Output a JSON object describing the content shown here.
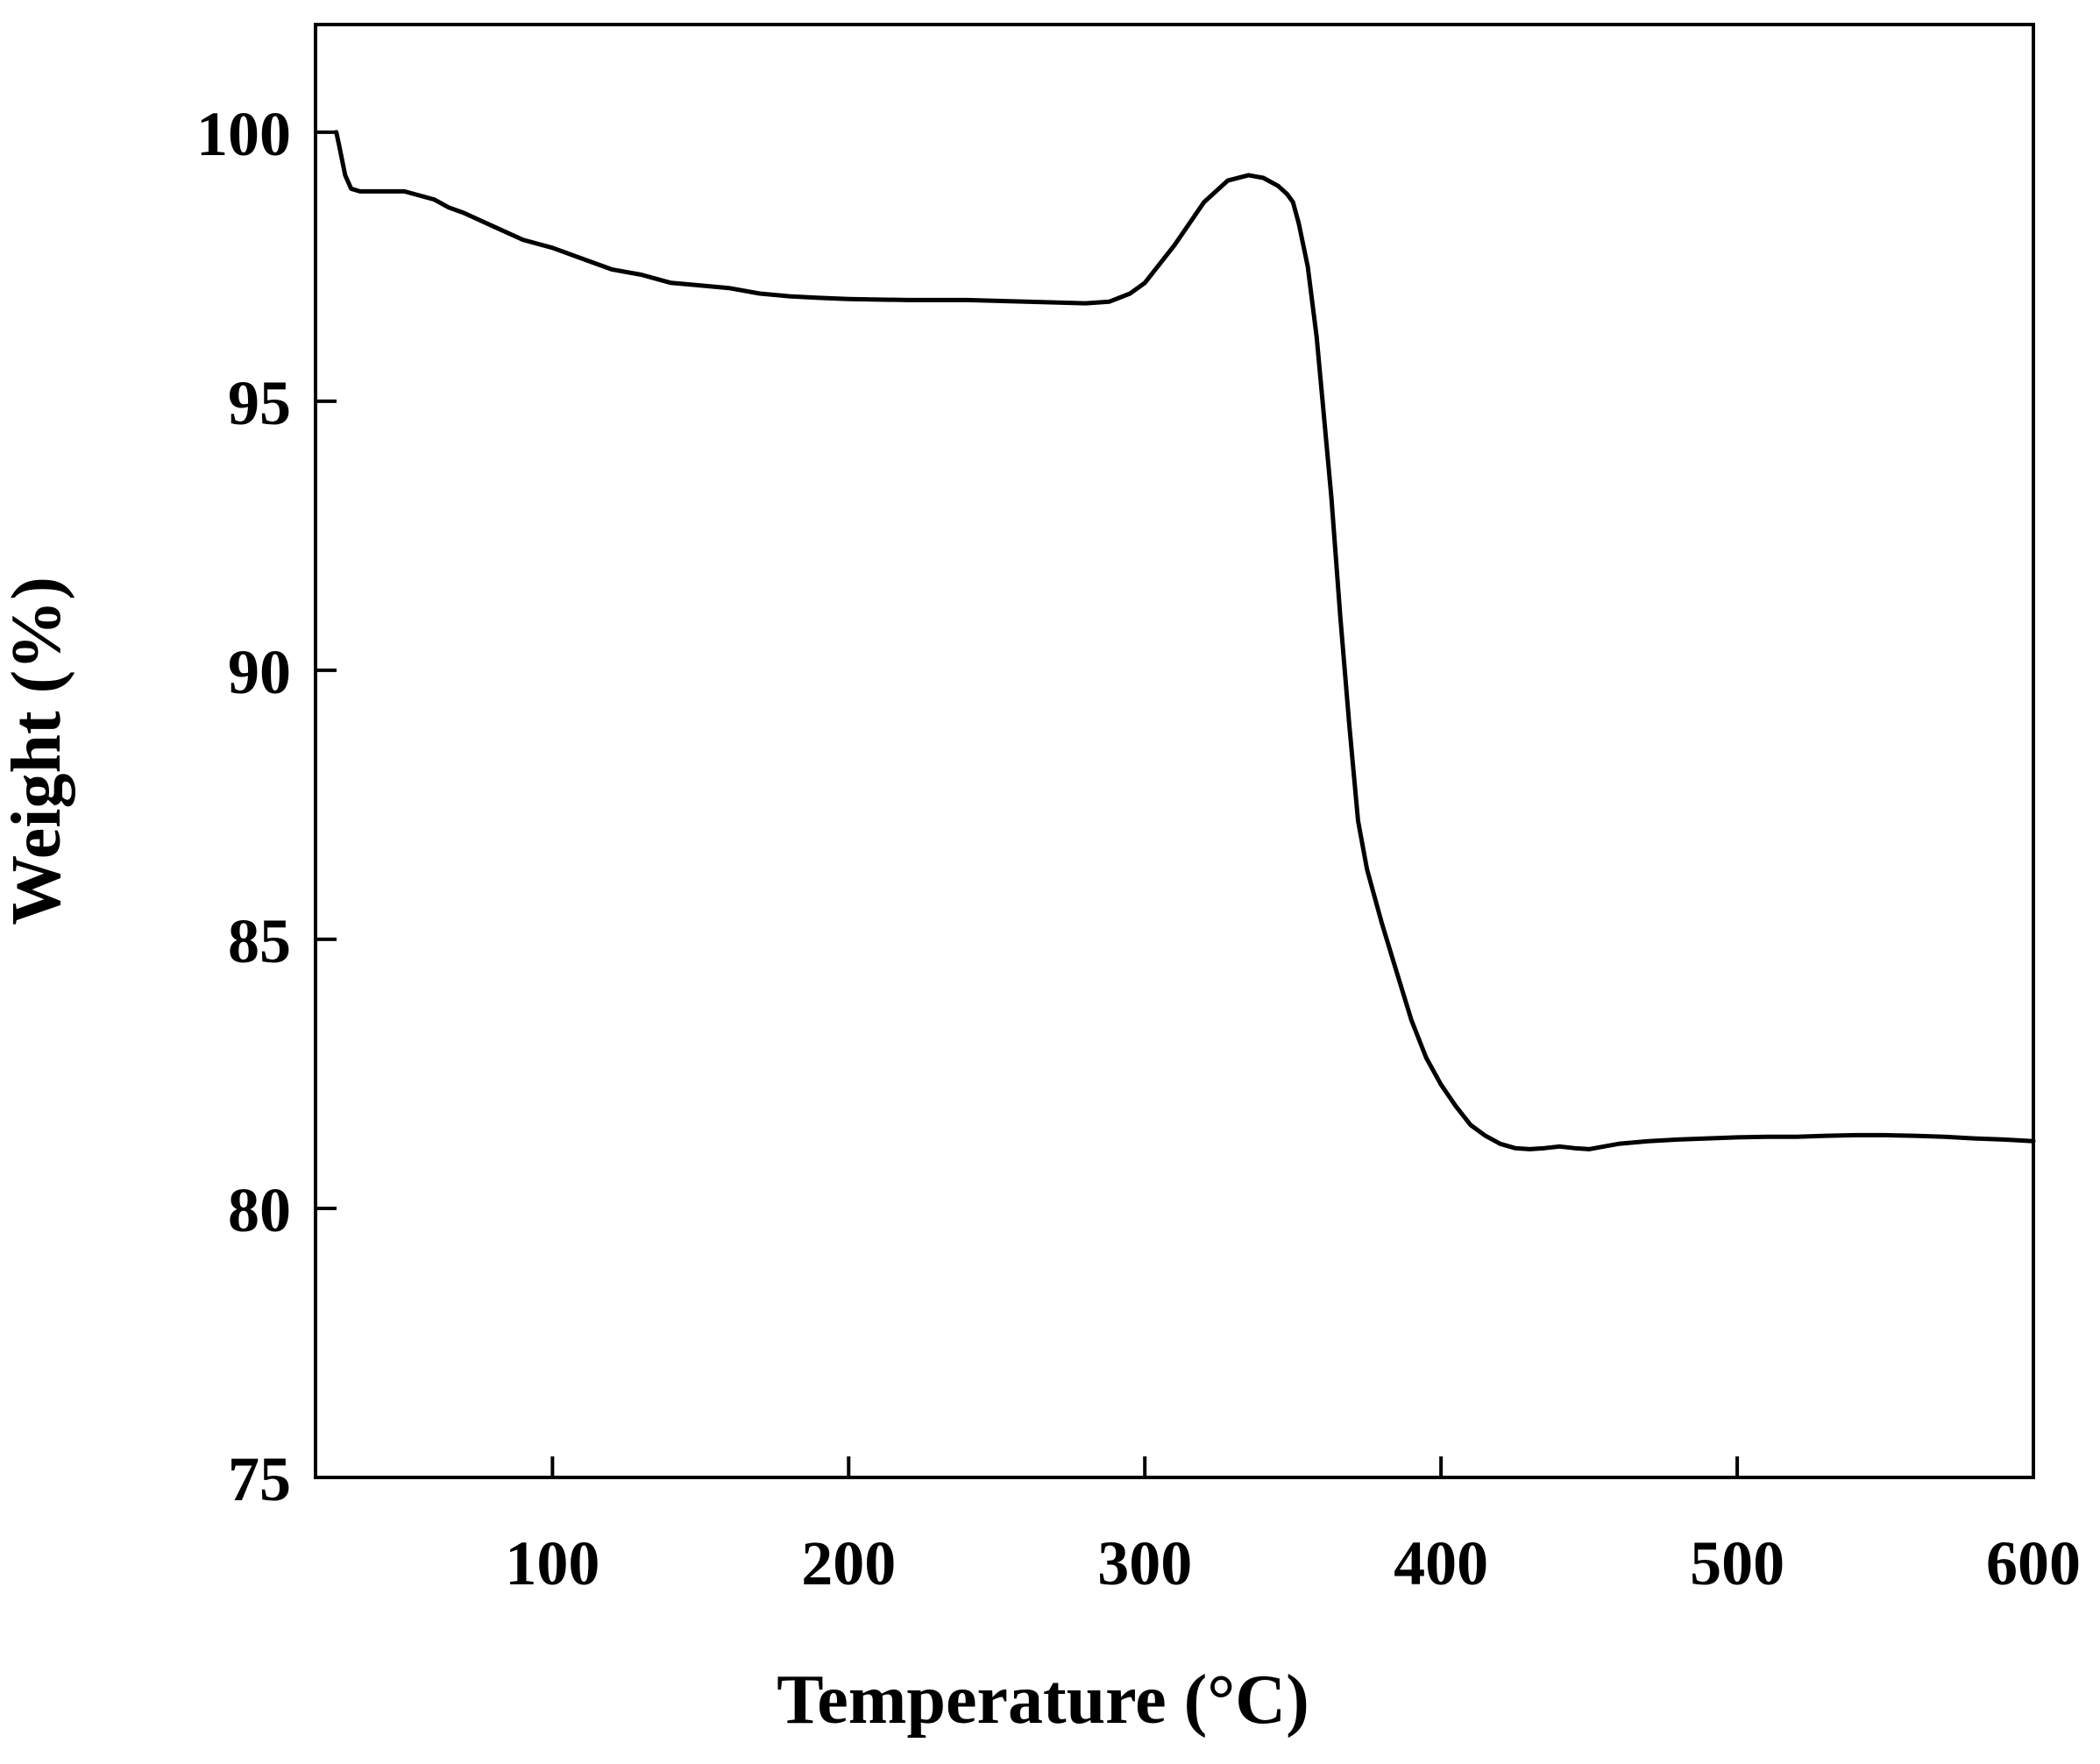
{
  "chart_data": {
    "type": "line",
    "title": "",
    "xlabel": "Temperature (°C)",
    "ylabel": "Weight (%)",
    "xlim": [
      20,
      600
    ],
    "ylim": [
      75,
      102
    ],
    "xticks": [
      100,
      200,
      300,
      400,
      500,
      600
    ],
    "yticks": [
      75,
      80,
      85,
      90,
      95,
      100
    ],
    "xtick_labels": [
      "100",
      "200",
      "300",
      "400",
      "500",
      "600"
    ],
    "ytick_labels": [
      "75",
      "80",
      "85",
      "90",
      "95",
      "100"
    ],
    "grid": false,
    "legend": "none",
    "line_color": "#000000",
    "series": [
      {
        "x": [
          27,
          28,
          30,
          32,
          35,
          40,
          50,
          60,
          65,
          70,
          80,
          90,
          100,
          110,
          120,
          130,
          140,
          150,
          160,
          170,
          180,
          190,
          200,
          220,
          240,
          260,
          280,
          288,
          295,
          300,
          310,
          320,
          328,
          335,
          340,
          345,
          348,
          350,
          352,
          355,
          358,
          360,
          363,
          366,
          369,
          372,
          375,
          380,
          385,
          390,
          395,
          400,
          405,
          410,
          415,
          420,
          425,
          430,
          435,
          440,
          445,
          450,
          455,
          460,
          470,
          480,
          490,
          500,
          510,
          520,
          530,
          540,
          550,
          560,
          570,
          580,
          590,
          600
        ],
        "y": [
          100.0,
          99.75,
          99.2,
          98.95,
          98.9,
          98.9,
          98.9,
          98.75,
          98.6,
          98.5,
          98.25,
          98.0,
          97.85,
          97.65,
          97.45,
          97.35,
          97.2,
          97.15,
          97.1,
          97.0,
          96.95,
          96.92,
          96.9,
          96.88,
          96.88,
          96.85,
          96.82,
          96.85,
          97.0,
          97.2,
          97.9,
          98.7,
          99.1,
          99.2,
          99.15,
          99.0,
          98.85,
          98.7,
          98.3,
          97.5,
          96.2,
          95.0,
          93.2,
          91.0,
          89.0,
          87.2,
          86.3,
          85.3,
          84.4,
          83.5,
          82.8,
          82.3,
          81.9,
          81.55,
          81.35,
          81.2,
          81.12,
          81.1,
          81.12,
          81.15,
          81.12,
          81.1,
          81.15,
          81.2,
          81.25,
          81.28,
          81.3,
          81.32,
          81.33,
          81.33,
          81.35,
          81.36,
          81.36,
          81.35,
          81.33,
          81.3,
          81.28,
          81.25
        ]
      }
    ]
  }
}
